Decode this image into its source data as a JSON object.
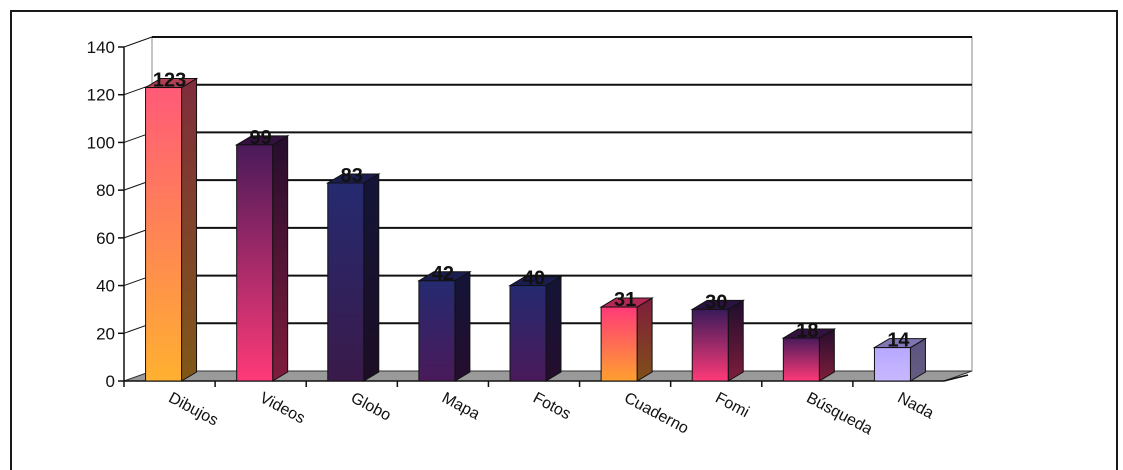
{
  "chart_data": {
    "type": "bar",
    "title": "",
    "xlabel": "",
    "ylabel": "",
    "categories": [
      "Dibujos",
      "Videos",
      "Globo",
      "Mapa",
      "Fotos",
      "Cuaderno",
      "Fomi",
      "Búsqueda",
      "Nada"
    ],
    "values": [
      123,
      99,
      83,
      42,
      40,
      31,
      30,
      18,
      14
    ],
    "value_labels": [
      "123",
      "99",
      "83",
      "42",
      "40",
      "31",
      "30",
      "18",
      "14"
    ],
    "y_ticks": [
      "0",
      "20",
      "40",
      "60",
      "80",
      "100",
      "120",
      "140"
    ],
    "ylim": [
      0,
      140
    ],
    "grid": true,
    "legend": "none",
    "bar_colors": [
      [
        "#ff5a78",
        "#ffb030"
      ],
      [
        "#4a1a5a",
        "#ff3a78"
      ],
      [
        "#252a70",
        "#3a1a4a"
      ],
      [
        "#252a70",
        "#4a1a5a"
      ],
      [
        "#252a70",
        "#4a1a5a"
      ],
      [
        "#ff3a78",
        "#ffa030"
      ],
      [
        "#3a1a5a",
        "#ff3a78"
      ],
      [
        "#4a1a5a",
        "#ff3a78"
      ],
      [
        "#b8a8ff",
        "#c8b8ff"
      ]
    ]
  }
}
